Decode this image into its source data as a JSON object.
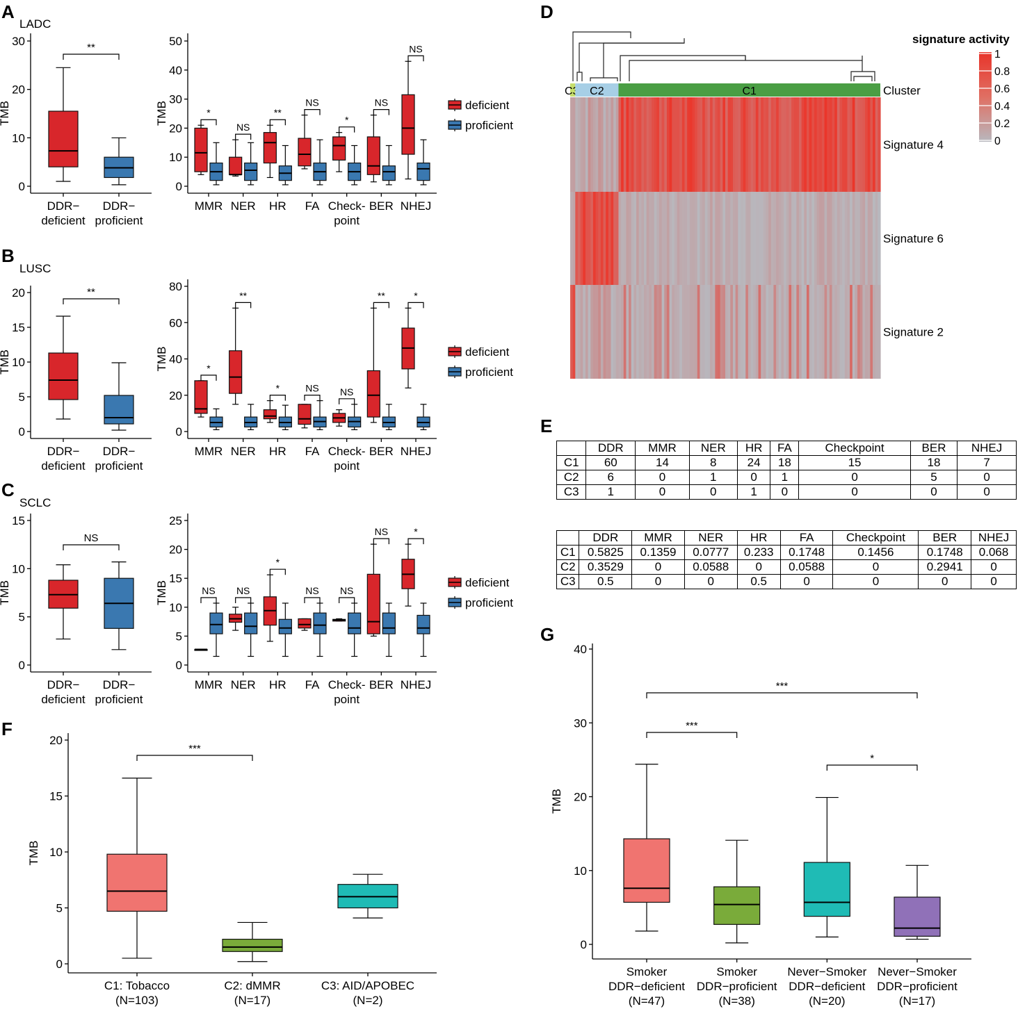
{
  "panel_labels": {
    "A": "A",
    "B": "B",
    "C": "C",
    "D": "D",
    "E": "E",
    "F": "F",
    "G": "G"
  },
  "colors": {
    "deficient": "#d8262b",
    "proficient": "#3a78b0",
    "c1": "#f07470",
    "c2": "#7aab3a",
    "c3": "#1fbbb5",
    "c4": "#9071b8",
    "c1_green": "#4a9e44",
    "c2_blue": "#a7cfe6",
    "c3_lime": "#c6de6c"
  },
  "chart_data": [
    {
      "id": "A1",
      "type": "box",
      "title": "LADC",
      "ylabel": "TMB",
      "ylim": [
        0,
        30
      ],
      "yticks": [
        0,
        10,
        20,
        30
      ],
      "categories": [
        "DDR−\ndeficient",
        "DDR−\nproficient"
      ],
      "boxes": [
        {
          "group": "deficient",
          "q": [
            1,
            4,
            7.3,
            15.5,
            24.5
          ]
        },
        {
          "group": "proficient",
          "q": [
            0.3,
            1.8,
            3.8,
            6,
            10
          ]
        }
      ],
      "sig": [
        {
          "a": 0,
          "b": 1,
          "label": "**"
        }
      ]
    },
    {
      "id": "A2",
      "type": "box",
      "ylabel": "TMB",
      "ylim": [
        0,
        50
      ],
      "yticks": [
        0,
        10,
        20,
        30,
        40,
        50
      ],
      "categories": [
        "MMR",
        "NER",
        "HR",
        "FA",
        "Check-\npoint",
        "BER",
        "NHEJ"
      ],
      "deficient": [
        [
          4,
          5,
          11.5,
          20,
          21
        ],
        [
          3.5,
          4,
          4,
          10,
          16
        ],
        [
          3,
          8,
          15,
          18.5,
          21
        ],
        [
          6,
          7,
          11,
          16.5,
          24.5
        ],
        [
          5,
          9,
          14,
          17,
          18.5
        ],
        [
          1.5,
          4,
          7,
          17,
          24.5
        ],
        [
          2.5,
          11,
          20,
          31.5,
          43
        ]
      ],
      "proficient": [
        [
          0.5,
          2,
          5,
          8,
          15
        ],
        [
          0.5,
          2,
          5.5,
          8,
          15
        ],
        [
          0.5,
          2,
          4.5,
          7,
          14
        ],
        [
          0.5,
          2,
          5,
          8,
          16
        ],
        [
          0.5,
          2,
          5,
          8,
          14
        ],
        [
          0.5,
          2,
          5,
          7,
          14
        ],
        [
          0.5,
          2,
          6,
          8,
          16
        ]
      ],
      "sig": [
        "*",
        "NS",
        "**",
        "NS",
        "*",
        "NS",
        "NS"
      ],
      "legend": [
        "deficient",
        "proficient"
      ]
    },
    {
      "id": "B1",
      "type": "box",
      "title": "LUSC",
      "ylabel": "TMB",
      "ylim": [
        0,
        20
      ],
      "yticks": [
        0,
        5,
        10,
        15,
        20
      ],
      "categories": [
        "DDR−\ndeficient",
        "DDR−\nproficient"
      ],
      "boxes": [
        {
          "group": "deficient",
          "q": [
            1.8,
            4.6,
            7.4,
            11.3,
            16.6
          ]
        },
        {
          "group": "proficient",
          "q": [
            0.2,
            1.1,
            2,
            5.2,
            9.9
          ]
        }
      ],
      "sig": [
        {
          "a": 0,
          "b": 1,
          "label": "**"
        }
      ]
    },
    {
      "id": "B2",
      "type": "box",
      "ylabel": "TMB",
      "ylim": [
        0,
        80
      ],
      "yticks": [
        0,
        20,
        40,
        60,
        80
      ],
      "categories": [
        "MMR",
        "NER",
        "HR",
        "FA",
        "Check-\npoint",
        "BER",
        "NHEJ"
      ],
      "deficient": [
        [
          8,
          10,
          12.5,
          28,
          28
        ],
        [
          15,
          21,
          30,
          44.5,
          68
        ],
        [
          5,
          7,
          8.5,
          12,
          17
        ],
        [
          2,
          4,
          7,
          15,
          15
        ],
        [
          3,
          5,
          7.5,
          10,
          12
        ],
        [
          5,
          8,
          20,
          33.5,
          68
        ],
        [
          24,
          34.5,
          46,
          57,
          68
        ]
      ],
      "proficient": [
        [
          1,
          2.5,
          5,
          8,
          12.5
        ],
        [
          1,
          2.5,
          5,
          8,
          15
        ],
        [
          1,
          2.5,
          5,
          8,
          14.5
        ],
        [
          1,
          2.5,
          5.5,
          8,
          17
        ],
        [
          1,
          2.5,
          5.5,
          8,
          15
        ],
        [
          1,
          2.5,
          5,
          8,
          15
        ],
        [
          1,
          2.5,
          5,
          8,
          15
        ]
      ],
      "sig": [
        "*",
        "**",
        "*",
        "NS",
        "NS",
        "**",
        "*"
      ],
      "legend": [
        "deficient",
        "proficient"
      ]
    },
    {
      "id": "C1",
      "type": "box",
      "title": "SCLC",
      "ylabel": "TMB",
      "ylim": [
        0,
        15
      ],
      "yticks": [
        0,
        5,
        10,
        15
      ],
      "categories": [
        "DDR−\ndeficient",
        "DDR−\nproficient"
      ],
      "boxes": [
        {
          "group": "deficient",
          "q": [
            2.7,
            5.9,
            7.3,
            8.8,
            10.4
          ]
        },
        {
          "group": "proficient",
          "q": [
            1.6,
            3.8,
            6.4,
            9,
            10.7
          ]
        }
      ],
      "sig": [
        {
          "a": 0,
          "b": 1,
          "label": "NS"
        }
      ]
    },
    {
      "id": "C2",
      "type": "box",
      "ylabel": "TMB",
      "ylim": [
        0,
        25
      ],
      "yticks": [
        0,
        5,
        10,
        15,
        20,
        25
      ],
      "categories": [
        "MMR",
        "NER",
        "HR",
        "FA",
        "Check-\npoint",
        "BER",
        "NHEJ"
      ],
      "deficient": [
        [
          2.7,
          2.7,
          2.7,
          2.7,
          2.7
        ],
        [
          6,
          7.4,
          8,
          8.8,
          10
        ],
        [
          4.1,
          6.9,
          9.4,
          11.8,
          15.6
        ],
        [
          6,
          6.4,
          7,
          8,
          8
        ],
        [
          7.6,
          7.6,
          7.8,
          7.9,
          8
        ],
        [
          5,
          5.4,
          7.5,
          15.7,
          20.9
        ],
        [
          10.2,
          13.2,
          15.7,
          18.3,
          20.9
        ]
      ],
      "proficient": [
        [
          1.5,
          5.4,
          7,
          9,
          10.7
        ],
        [
          1.5,
          5.4,
          6.7,
          9,
          10.7
        ],
        [
          1.5,
          5.4,
          6.4,
          7.9,
          10.7
        ],
        [
          1.5,
          5.4,
          6.9,
          9,
          10.7
        ],
        [
          1.5,
          5.4,
          6.4,
          9,
          10.7
        ],
        [
          1.5,
          5.4,
          6.4,
          9,
          10.7
        ],
        [
          1.5,
          5.4,
          6.4,
          8.6,
          10.7
        ]
      ],
      "sig": [
        "NS",
        "NS",
        "*",
        "NS",
        "NS",
        "NS",
        "*"
      ],
      "legend": [
        "deficient",
        "proficient"
      ]
    },
    {
      "id": "F",
      "type": "box",
      "ylabel": "TMB",
      "ylim": [
        0,
        20
      ],
      "yticks": [
        0,
        5,
        10,
        15,
        20
      ],
      "categories": [
        "C1: Tobacco\n(N=103)",
        "C2: dMMR\n(N=17)",
        "C3: AID/APOBEC\n(N=2)"
      ],
      "boxes": [
        {
          "group": "c1",
          "q": [
            0.5,
            4.7,
            6.5,
            9.8,
            16.6
          ]
        },
        {
          "group": "c2",
          "q": [
            0.2,
            1.1,
            1.5,
            2.2,
            3.7
          ]
        },
        {
          "group": "c3",
          "q": [
            4.1,
            5,
            6,
            7.1,
            8
          ]
        }
      ],
      "sig": [
        {
          "a": 0,
          "b": 1,
          "label": "***"
        }
      ]
    },
    {
      "id": "G",
      "type": "box",
      "ylabel": "TMB",
      "ylim": [
        0,
        40
      ],
      "yticks": [
        0,
        10,
        20,
        30,
        40
      ],
      "categories": [
        "Smoker\nDDR−deficient\n(N=47)",
        "Smoker\nDDR−proficient\n(N=38)",
        "Never−Smoker\nDDR−deficient\n(N=20)",
        "Never−Smoker\nDDR−proficient\n(N=17)"
      ],
      "boxes": [
        {
          "group": "c1",
          "q": [
            1.8,
            5.7,
            7.6,
            14.3,
            24.4
          ]
        },
        {
          "group": "c2",
          "q": [
            0.2,
            2.7,
            5.4,
            7.8,
            14.1
          ]
        },
        {
          "group": "c3",
          "q": [
            1,
            3.8,
            5.7,
            11.1,
            19.9
          ]
        },
        {
          "group": "c4",
          "q": [
            0.7,
            1.1,
            2.2,
            6.4,
            10.7
          ]
        }
      ],
      "sig": [
        {
          "a": 0,
          "b": 1,
          "label": "***"
        },
        {
          "a": 0,
          "b": 3,
          "label": "***"
        },
        {
          "a": 2,
          "b": 3,
          "label": "*"
        }
      ]
    },
    {
      "id": "D",
      "type": "heatmap",
      "title": "signature activity",
      "rows": [
        "Signature 4",
        "Signature 6",
        "Signature 2"
      ],
      "clusters": [
        {
          "label": "C3",
          "n": 2
        },
        {
          "label": "C2",
          "n": 17
        },
        {
          "label": "C1",
          "n": 103
        }
      ],
      "cluster_track_label": "Cluster",
      "colorbar_ticks": [
        "1",
        "0.8",
        "0.6",
        "0.4",
        "0.2",
        "0"
      ]
    }
  ],
  "tables": {
    "counts": {
      "header": [
        "",
        "DDR",
        "MMR",
        "NER",
        "HR",
        "FA",
        "Checkpoint",
        "BER",
        "NHEJ"
      ],
      "rows": [
        [
          "C1",
          "60",
          "14",
          "8",
          "24",
          "18",
          "15",
          "18",
          "7"
        ],
        [
          "C2",
          "6",
          "0",
          "1",
          "0",
          "1",
          "0",
          "5",
          "0"
        ],
        [
          "C3",
          "1",
          "0",
          "0",
          "1",
          "0",
          "0",
          "0",
          "0"
        ]
      ]
    },
    "fractions": {
      "header": [
        "",
        "DDR",
        "MMR",
        "NER",
        "HR",
        "FA",
        "Checkpoint",
        "BER",
        "NHEJ"
      ],
      "rows": [
        [
          "C1",
          "0.5825",
          "0.1359",
          "0.0777",
          "0.233",
          "0.1748",
          "0.1456",
          "0.1748",
          "0.068"
        ],
        [
          "C2",
          "0.3529",
          "0",
          "0.0588",
          "0",
          "0.0588",
          "0",
          "0.2941",
          "0"
        ],
        [
          "C3",
          "0.5",
          "0",
          "0",
          "0.5",
          "0",
          "0",
          "0",
          "0"
        ]
      ]
    }
  }
}
